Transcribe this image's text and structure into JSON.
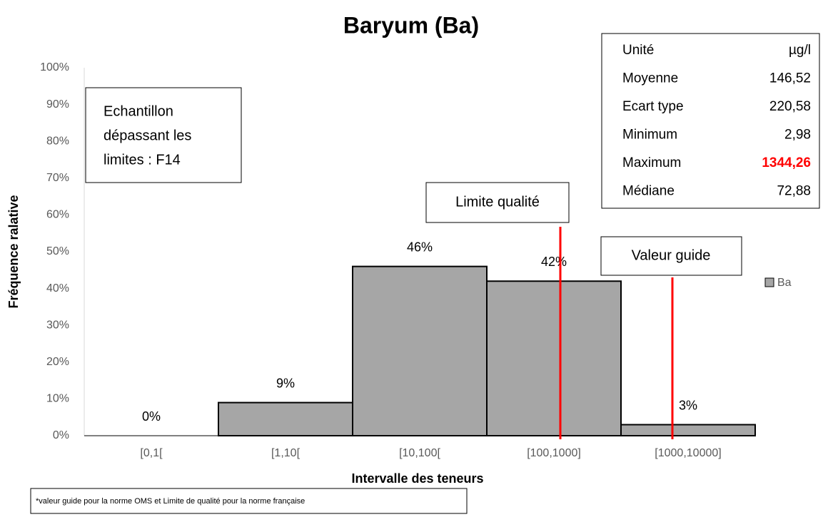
{
  "chart_data": {
    "type": "bar",
    "title": "Baryum (Ba)",
    "x_label": "Intervalle des teneurs",
    "y_label": "Fréquence ralative",
    "categories": [
      "[0,1[",
      "[1,10[",
      "[10,100[",
      "[100,1000]",
      "[1000,10000]"
    ],
    "series": [
      {
        "name": "Ba",
        "color": "#a6a6a6",
        "values": [
          0,
          9,
          46,
          42,
          3
        ],
        "value_labels": [
          "0%",
          "9%",
          "46%",
          "42%",
          "3%"
        ]
      }
    ],
    "ylim": [
      0,
      100
    ],
    "yticks": [
      {
        "value": 0,
        "label": "0%"
      },
      {
        "value": 10,
        "label": "10%"
      },
      {
        "value": 20,
        "label": "20%"
      },
      {
        "value": 30,
        "label": "30%"
      },
      {
        "value": 40,
        "label": "40%"
      },
      {
        "value": 50,
        "label": "50%"
      },
      {
        "value": 60,
        "label": "60%"
      },
      {
        "value": 70,
        "label": "70%"
      },
      {
        "value": 80,
        "label": "80%"
      },
      {
        "value": 90,
        "label": "90%"
      },
      {
        "value": 100,
        "label": "100%"
      }
    ],
    "grid": false,
    "legend": "right",
    "annotations": {
      "sample_box": [
        "Echantillon",
        "dépassant les",
        "limites : F14"
      ],
      "quality_limit": "Limite qualité",
      "guide_value": "Valeur guide",
      "footnote": "*valeur guide pour la norme OMS et Limite de qualité pour la norme française"
    },
    "stats_table": [
      [
        "Unité",
        "µg/l"
      ],
      [
        "Moyenne",
        "146,52"
      ],
      [
        "Ecart type",
        "220,58"
      ],
      [
        "Minimum",
        "2,98"
      ],
      [
        "Maximum",
        "1344,26"
      ],
      [
        "Médiane",
        "72,88"
      ]
    ]
  }
}
